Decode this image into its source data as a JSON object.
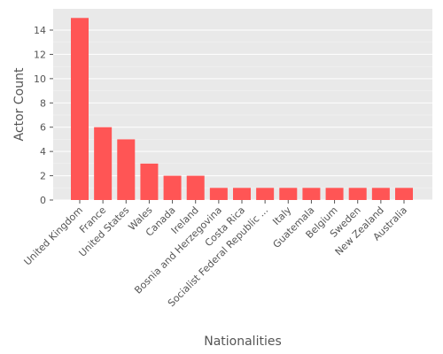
{
  "chart_data": {
    "type": "bar",
    "title": "",
    "xlabel": "Nationalities",
    "ylabel": "Actor Count",
    "categories": [
      "United Kingdom",
      "France",
      "United States",
      "Wales",
      "Canada",
      "Ireland",
      "Bosnia and Herzegovina",
      "Costa Rica",
      "Socialist Federal Republic ...",
      "Italy",
      "Guatemala",
      "Belgium",
      "Sweden",
      "New Zealand",
      "Australia"
    ],
    "values": [
      15,
      6,
      5,
      3,
      2,
      2,
      1,
      1,
      1,
      1,
      1,
      1,
      1,
      1,
      1
    ],
    "ylim": [
      0,
      15.75
    ],
    "yticks": [
      0,
      2,
      4,
      6,
      8,
      10,
      12,
      14
    ],
    "grid": true,
    "colors": {
      "bar": "#ff5555",
      "plot_background": "#e9e9e9",
      "grid": "#ffffff",
      "text": "#555555"
    }
  }
}
